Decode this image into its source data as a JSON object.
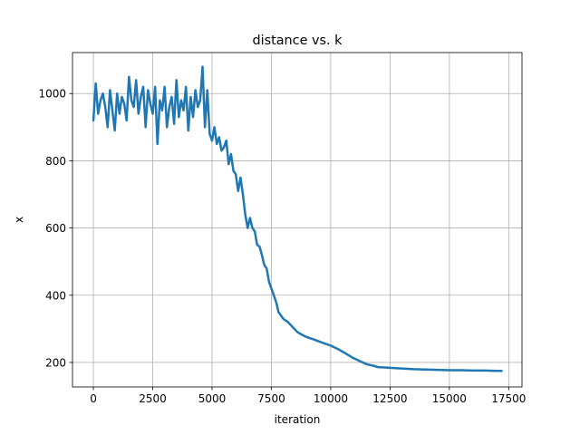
{
  "chart_data": {
    "type": "line",
    "title": "distance vs. k",
    "xlabel": "iteration",
    "ylabel": "x",
    "xlim": [
      -880,
      18060
    ],
    "ylim": [
      127,
      1122
    ],
    "xticks": [
      0,
      2500,
      5000,
      7500,
      10000,
      12500,
      15000,
      17500
    ],
    "xtick_labels": [
      "0",
      "2500",
      "5000",
      "7500",
      "10000",
      "12500",
      "15000",
      "17500"
    ],
    "yticks": [
      200,
      400,
      600,
      800,
      1000
    ],
    "ytick_labels": [
      "200",
      "400",
      "600",
      "800",
      "1000"
    ],
    "grid": true,
    "legend": "none",
    "series": [
      {
        "color": "#1f77b4",
        "x": [
          0,
          100,
          200,
          300,
          400,
          500,
          600,
          700,
          800,
          900,
          1000,
          1100,
          1200,
          1300,
          1400,
          1500,
          1600,
          1700,
          1800,
          1900,
          2000,
          2100,
          2200,
          2300,
          2400,
          2500,
          2600,
          2700,
          2800,
          2900,
          3000,
          3100,
          3200,
          3300,
          3400,
          3500,
          3600,
          3700,
          3800,
          3900,
          4000,
          4100,
          4200,
          4300,
          4400,
          4500,
          4600,
          4700,
          4800,
          4900,
          5000,
          5100,
          5200,
          5300,
          5400,
          5500,
          5600,
          5700,
          5800,
          5900,
          6000,
          6100,
          6200,
          6300,
          6400,
          6500,
          6600,
          6700,
          6800,
          6900,
          7000,
          7100,
          7200,
          7300,
          7400,
          7500,
          7600,
          7700,
          7800,
          7900,
          8000,
          8200,
          8400,
          8600,
          8800,
          9000,
          9300,
          9600,
          10000,
          10300,
          10600,
          10900,
          11200,
          11500,
          11800,
          12000,
          12500,
          13000,
          13500,
          14000,
          14500,
          15000,
          15500,
          16000,
          16500,
          17000,
          17200
        ],
        "values": [
          920,
          1030,
          940,
          980,
          1000,
          960,
          900,
          1010,
          950,
          890,
          1000,
          940,
          990,
          970,
          920,
          1050,
          980,
          960,
          1040,
          940,
          990,
          1020,
          900,
          1010,
          970,
          940,
          1020,
          850,
          980,
          950,
          1020,
          900,
          960,
          990,
          910,
          1040,
          930,
          980,
          950,
          1020,
          890,
          990,
          930,
          1010,
          960,
          980,
          1080,
          900,
          1010,
          880,
          860,
          900,
          850,
          870,
          830,
          840,
          860,
          790,
          820,
          770,
          760,
          710,
          750,
          700,
          640,
          600,
          630,
          600,
          590,
          550,
          545,
          520,
          490,
          480,
          440,
          420,
          400,
          380,
          350,
          340,
          330,
          320,
          305,
          290,
          282,
          275,
          268,
          260,
          250,
          240,
          228,
          215,
          205,
          195,
          190,
          186,
          184,
          182,
          180,
          179,
          178,
          177,
          177,
          176,
          176,
          175,
          175
        ]
      }
    ]
  }
}
